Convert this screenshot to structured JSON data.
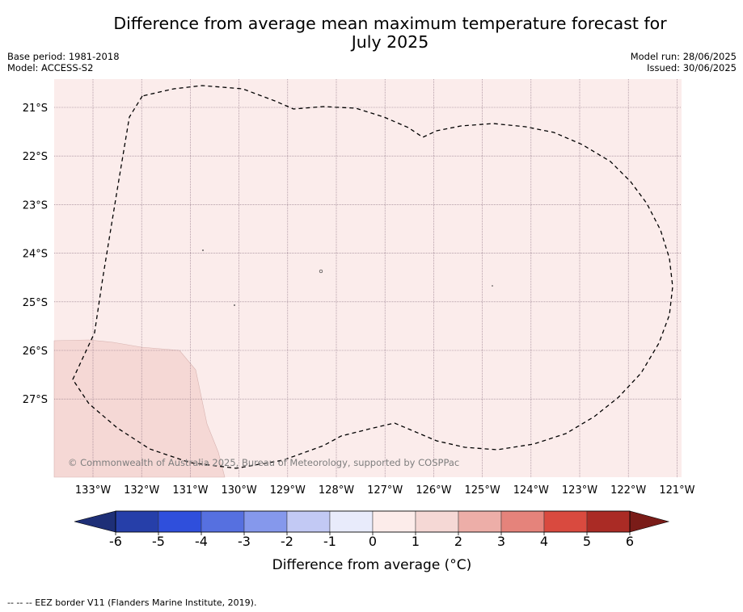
{
  "title": {
    "line1": "Difference from average mean maximum temperature forecast for",
    "line2": "July 2025"
  },
  "meta_left": {
    "base_period": "Base period: 1981-2018",
    "model": "Model: ACCESS-S2"
  },
  "meta_right": {
    "model_run": "Model run: 28/06/2025",
    "issued": "Issued: 30/06/2025"
  },
  "map": {
    "lat_labels": [
      "21°S",
      "22°S",
      "23°S",
      "24°S",
      "25°S",
      "26°S",
      "27°S"
    ],
    "lon_labels": [
      "133°W",
      "132°W",
      "131°W",
      "130°W",
      "129°W",
      "128°W",
      "127°W",
      "126°W",
      "125°W",
      "124°W",
      "123°W",
      "122°W",
      "121°W"
    ],
    "copyright": "© Commonwealth of Australia 2025, Bureau of Meteorology, supported by COSPPac",
    "background_color": "#fbeceb",
    "secondary_color": "#f5d8d5",
    "border_style": "dashed EEZ boundary"
  },
  "colorbar": {
    "label": "Difference from average (°C)",
    "ticks": [
      "-6",
      "-5",
      "-4",
      "-3",
      "-2",
      "-1",
      "0",
      "1",
      "2",
      "3",
      "4",
      "5",
      "6"
    ],
    "colors": [
      "#263fa9",
      "#2f4fdc",
      "#5670e0",
      "#8598ec",
      "#c2c9f4",
      "#e8ebfb",
      "#fcecea",
      "#f5d8d5",
      "#edaea8",
      "#e5837b",
      "#d94a3f",
      "#aa2b25"
    ],
    "extend_low": "#1e2f77",
    "extend_high": "#7a1c18"
  },
  "footer": "--  --  -- EEZ border V11 (Flanders Marine Institute, 2019)."
}
